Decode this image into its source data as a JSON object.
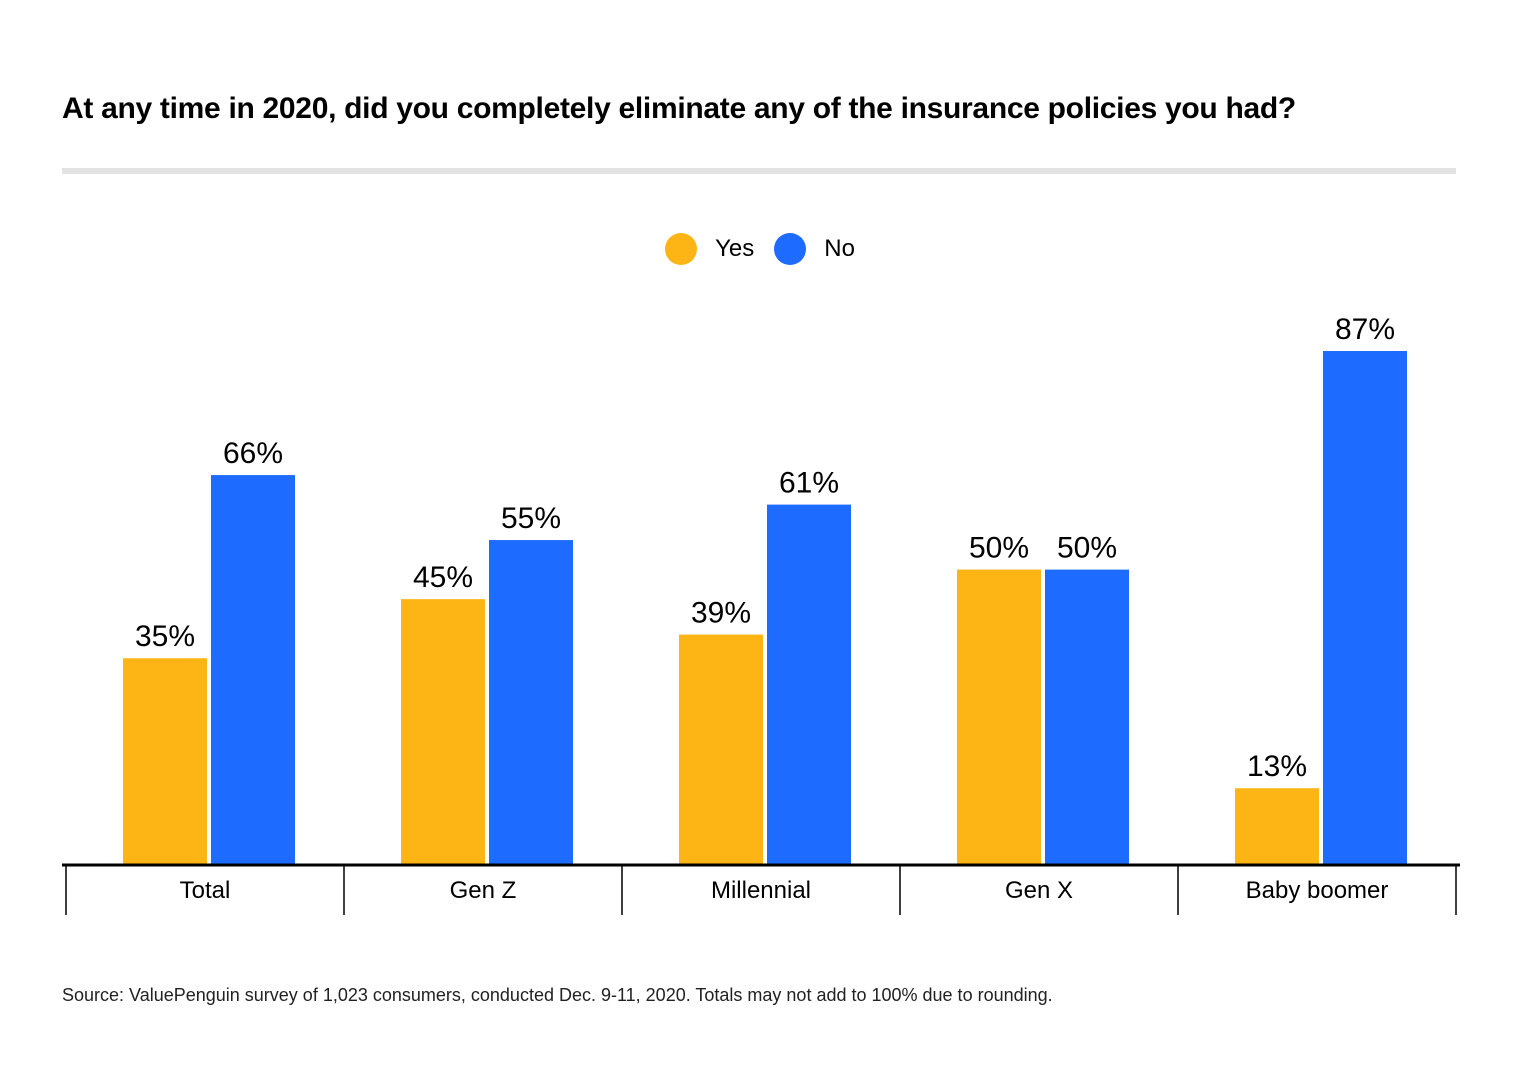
{
  "title": "At any time in 2020, did you completely eliminate any of the insurance policies you had?",
  "source": "Source: ValuePenguin survey of 1,023 consumers, conducted Dec. 9-11, 2020. Totals may not add to 100% due to rounding.",
  "legend": [
    {
      "label": "Yes",
      "color": "#FDB515"
    },
    {
      "label": "No",
      "color": "#1E6BFF"
    }
  ],
  "chart_data": {
    "type": "bar",
    "title": "At any time in 2020, did you completely eliminate any of the insurance policies you had?",
    "categories": [
      "Total",
      "Gen Z",
      "Millennial",
      "Gen X",
      "Baby boomer"
    ],
    "series": [
      {
        "name": "Yes",
        "values": [
          35,
          45,
          39,
          50,
          13
        ],
        "labels": [
          "35%",
          "45%",
          "39%",
          "50%",
          "13%"
        ],
        "color": "#FDB515"
      },
      {
        "name": "No",
        "values": [
          66,
          55,
          61,
          50,
          87
        ],
        "labels": [
          "66%",
          "55%",
          "61%",
          "50%",
          "87%"
        ],
        "color": "#1E6BFF"
      }
    ],
    "xlabel": "",
    "ylabel": "",
    "ylim": [
      0,
      100
    ],
    "grid": false,
    "legend_position": "top-center"
  }
}
